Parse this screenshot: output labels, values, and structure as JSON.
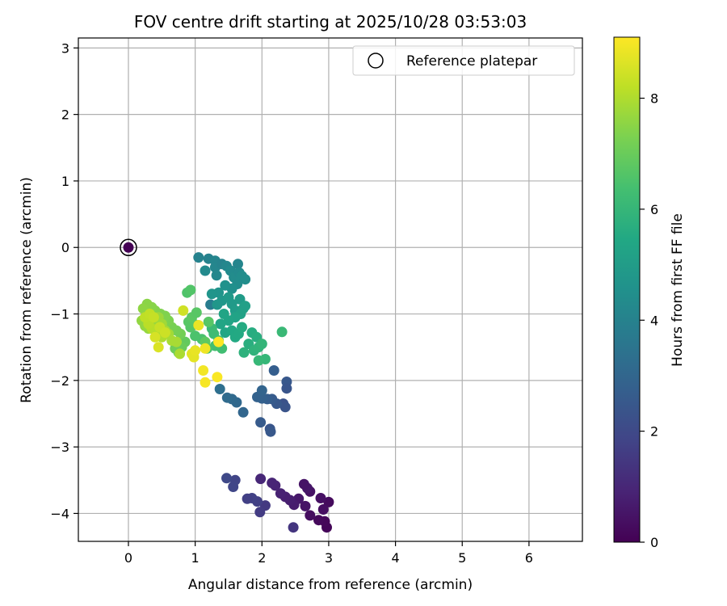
{
  "chart_data": {
    "type": "scatter",
    "title": "FOV centre drift starting at 2025/10/28 03:53:03",
    "xlabel": "Angular distance from reference (arcmin)",
    "ylabel": "Rotation from reference (arcmin)",
    "xlim": [
      -0.75,
      6.8
    ],
    "ylim": [
      -4.42,
      3.15
    ],
    "xticks": [
      0,
      1,
      2,
      3,
      4,
      5,
      6
    ],
    "yticks": [
      -4,
      -3,
      -2,
      -1,
      0,
      1,
      2,
      3
    ],
    "grid": true,
    "legend": {
      "position": "top-right",
      "entries": [
        "Reference platepar"
      ]
    },
    "reference_point": {
      "x": 0,
      "y": 0,
      "label": "Reference platepar",
      "hours": 0
    },
    "colorbar": {
      "label": "Hours from first FF file",
      "range": [
        0,
        9.1
      ],
      "ticks": [
        0,
        2,
        4,
        6,
        8
      ],
      "colormap": "viridis"
    },
    "points": [
      [
        2.97,
        -4.21,
        0.1
      ],
      [
        2.94,
        -4.12,
        0.15
      ],
      [
        2.85,
        -4.1,
        0.2
      ],
      [
        2.72,
        -4.03,
        0.3
      ],
      [
        3.0,
        -3.83,
        0.25
      ],
      [
        2.92,
        -3.94,
        0.35
      ],
      [
        2.88,
        -3.77,
        0.4
      ],
      [
        2.72,
        -3.67,
        0.45
      ],
      [
        2.68,
        -3.62,
        0.55
      ],
      [
        2.63,
        -3.56,
        0.5
      ],
      [
        2.55,
        -3.78,
        0.6
      ],
      [
        2.65,
        -3.89,
        0.5
      ],
      [
        2.48,
        -3.87,
        0.7
      ],
      [
        2.42,
        -3.8,
        0.75
      ],
      [
        2.35,
        -3.75,
        0.8
      ],
      [
        2.28,
        -3.7,
        0.85
      ],
      [
        2.2,
        -3.58,
        0.9
      ],
      [
        2.15,
        -3.54,
        0.95
      ],
      [
        2.47,
        -4.21,
        1.4
      ],
      [
        1.98,
        -3.48,
        1.0
      ],
      [
        2.05,
        -3.88,
        1.5
      ],
      [
        1.97,
        -3.98,
        1.6
      ],
      [
        1.93,
        -3.82,
        1.7
      ],
      [
        1.85,
        -3.77,
        1.75
      ],
      [
        1.78,
        -3.78,
        1.7
      ],
      [
        1.6,
        -3.5,
        1.85
      ],
      [
        1.57,
        -3.6,
        1.9
      ],
      [
        1.47,
        -3.47,
        2.0
      ],
      [
        2.12,
        -2.73,
        2.4
      ],
      [
        2.13,
        -2.77,
        2.5
      ],
      [
        1.98,
        -2.63,
        2.6
      ],
      [
        2.37,
        -2.02,
        2.5
      ],
      [
        2.37,
        -2.12,
        2.4
      ],
      [
        2.32,
        -2.35,
        2.3
      ],
      [
        2.35,
        -2.4,
        2.35
      ],
      [
        2.22,
        -2.35,
        2.5
      ],
      [
        2.15,
        -2.28,
        2.6
      ],
      [
        2.08,
        -2.28,
        2.7
      ],
      [
        2.0,
        -2.27,
        2.8
      ],
      [
        1.93,
        -2.25,
        2.85
      ],
      [
        2.0,
        -2.15,
        2.9
      ],
      [
        2.18,
        -1.85,
        2.7
      ],
      [
        1.72,
        -2.48,
        3.0
      ],
      [
        1.62,
        -2.33,
        3.05
      ],
      [
        1.55,
        -2.28,
        3.1
      ],
      [
        1.48,
        -2.26,
        3.15
      ],
      [
        1.37,
        -2.13,
        3.3
      ],
      [
        1.23,
        -0.86,
        3.8
      ],
      [
        1.05,
        -0.15,
        4.0
      ],
      [
        1.2,
        -0.17,
        4.0
      ],
      [
        1.3,
        -0.2,
        4.1
      ],
      [
        1.3,
        -0.3,
        4.15
      ],
      [
        1.32,
        -0.42,
        4.2
      ],
      [
        1.4,
        -0.25,
        4.05
      ],
      [
        1.47,
        -0.28,
        4.2
      ],
      [
        1.53,
        -0.35,
        4.3
      ],
      [
        1.58,
        -0.45,
        4.35
      ],
      [
        1.64,
        -0.25,
        4.1
      ],
      [
        1.66,
        -0.38,
        4.3
      ],
      [
        1.7,
        -0.43,
        4.4
      ],
      [
        1.75,
        -0.48,
        4.45
      ],
      [
        1.63,
        -0.55,
        4.4
      ],
      [
        1.55,
        -0.62,
        4.5
      ],
      [
        1.45,
        -0.57,
        4.6
      ],
      [
        1.35,
        -0.68,
        4.65
      ],
      [
        1.25,
        -0.7,
        4.7
      ],
      [
        1.15,
        -0.35,
        4.3
      ],
      [
        1.33,
        -0.86,
        4.75
      ],
      [
        1.4,
        -0.8,
        4.8
      ],
      [
        1.5,
        -0.75,
        4.85
      ],
      [
        1.55,
        -0.85,
        4.9
      ],
      [
        1.6,
        -0.95,
        5.0
      ],
      [
        1.67,
        -0.78,
        4.95
      ],
      [
        1.72,
        -0.92,
        5.1
      ],
      [
        1.75,
        -0.88,
        5.15
      ],
      [
        1.68,
        -1.0,
        5.2
      ],
      [
        1.6,
        -1.05,
        5.25
      ],
      [
        1.5,
        -1.1,
        5.3
      ],
      [
        1.43,
        -1.0,
        5.3
      ],
      [
        1.38,
        -1.15,
        5.35
      ],
      [
        1.45,
        -1.28,
        5.4
      ],
      [
        1.55,
        -1.25,
        5.45
      ],
      [
        1.6,
        -1.35,
        5.5
      ],
      [
        1.65,
        -1.3,
        5.5
      ],
      [
        1.7,
        -1.2,
        5.55
      ],
      [
        1.85,
        -1.28,
        5.6
      ],
      [
        1.92,
        -1.35,
        5.65
      ],
      [
        1.8,
        -1.45,
        5.7
      ],
      [
        1.73,
        -1.58,
        5.8
      ],
      [
        1.88,
        -1.55,
        5.85
      ],
      [
        1.95,
        -1.5,
        5.9
      ],
      [
        2.0,
        -1.45,
        5.95
      ],
      [
        2.05,
        -1.68,
        6.0
      ],
      [
        1.95,
        -1.7,
        6.05
      ],
      [
        2.3,
        -1.27,
        6.1
      ],
      [
        1.25,
        -1.22,
        6.15
      ],
      [
        1.28,
        -1.3,
        6.2
      ],
      [
        1.35,
        -1.4,
        6.25
      ],
      [
        1.4,
        -1.52,
        6.3
      ],
      [
        1.3,
        -1.48,
        6.35
      ],
      [
        1.18,
        -1.52,
        6.4
      ],
      [
        1.1,
        -1.38,
        6.45
      ],
      [
        1.0,
        -1.33,
        6.5
      ],
      [
        0.98,
        -1.15,
        6.6
      ],
      [
        0.93,
        -1.2,
        6.65
      ],
      [
        0.9,
        -1.12,
        6.7
      ],
      [
        0.95,
        -1.05,
        6.75
      ],
      [
        1.02,
        -0.98,
        6.7
      ],
      [
        0.88,
        -0.68,
        6.55
      ],
      [
        0.93,
        -0.64,
        6.6
      ],
      [
        1.2,
        -1.12,
        6.7
      ],
      [
        1.15,
        -1.42,
        6.8
      ],
      [
        0.85,
        -1.42,
        6.9
      ],
      [
        0.8,
        -1.5,
        7.0
      ],
      [
        0.75,
        -1.58,
        7.05
      ],
      [
        0.7,
        -1.52,
        7.1
      ],
      [
        0.78,
        -1.3,
        7.15
      ],
      [
        0.72,
        -1.25,
        7.2
      ],
      [
        0.65,
        -1.2,
        7.25
      ],
      [
        0.6,
        -1.1,
        7.3
      ],
      [
        0.55,
        -1.03,
        7.35
      ],
      [
        0.48,
        -1.0,
        7.35
      ],
      [
        0.4,
        -0.95,
        7.4
      ],
      [
        0.35,
        -0.9,
        7.45
      ],
      [
        0.28,
        -0.85,
        7.5
      ],
      [
        0.22,
        -0.92,
        7.55
      ],
      [
        0.2,
        -1.1,
        7.6
      ],
      [
        0.25,
        -1.18,
        7.6
      ],
      [
        0.3,
        -1.22,
        7.65
      ],
      [
        0.35,
        -1.15,
        7.7
      ],
      [
        0.4,
        -1.1,
        7.7
      ],
      [
        0.45,
        -1.05,
        7.75
      ],
      [
        0.5,
        -1.15,
        7.8
      ],
      [
        0.55,
        -1.25,
        7.85
      ],
      [
        0.6,
        -1.3,
        7.85
      ],
      [
        0.65,
        -1.4,
        7.9
      ],
      [
        0.72,
        -1.42,
        7.9
      ],
      [
        0.77,
        -1.6,
        7.95
      ],
      [
        0.5,
        -1.35,
        8.0
      ],
      [
        0.42,
        -1.28,
        8.05
      ],
      [
        0.35,
        -1.22,
        8.1
      ],
      [
        0.3,
        -1.15,
        8.15
      ],
      [
        0.25,
        -1.05,
        8.2
      ],
      [
        0.32,
        -1.0,
        8.25
      ],
      [
        0.38,
        -1.05,
        8.3
      ],
      [
        0.47,
        -1.2,
        8.35
      ],
      [
        0.55,
        -1.28,
        8.4
      ],
      [
        0.82,
        -0.95,
        8.45
      ],
      [
        0.4,
        -1.35,
        8.55
      ],
      [
        0.45,
        -1.5,
        8.6
      ],
      [
        0.95,
        -1.6,
        8.7
      ],
      [
        0.98,
        -1.65,
        8.75
      ],
      [
        1.0,
        -1.55,
        8.8
      ],
      [
        1.05,
        -1.17,
        8.85
      ],
      [
        1.15,
        -1.52,
        8.9
      ],
      [
        1.12,
        -1.85,
        8.95
      ],
      [
        1.15,
        -2.03,
        9.0
      ],
      [
        1.33,
        -1.95,
        9.05
      ],
      [
        1.35,
        -1.42,
        9.1
      ]
    ]
  }
}
